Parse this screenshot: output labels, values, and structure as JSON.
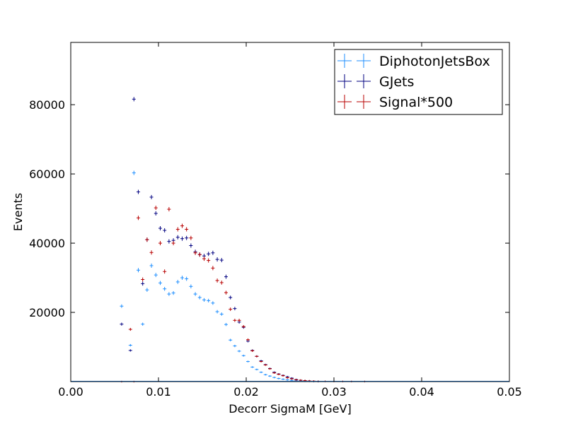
{
  "chart_data": {
    "type": "scatter",
    "xlabel": "Decorr SigmaM [GeV]",
    "ylabel": "Events",
    "xlim": [
      0.0,
      0.05
    ],
    "ylim": [
      0,
      98000
    ],
    "xticks": [
      "0.00",
      "0.01",
      "0.02",
      "0.03",
      "0.04",
      "0.05"
    ],
    "yticks": [
      "20000",
      "40000",
      "60000",
      "80000"
    ],
    "grid": false,
    "legend_position": "top-right",
    "bin_width": 0.0004,
    "series": [
      {
        "name": "DiphotonJetsBox",
        "color": "#1f8fff",
        "x": [
          0.0058,
          0.0068,
          0.0072,
          0.0077,
          0.0082,
          0.0087,
          0.0092,
          0.0097,
          0.0102,
          0.0107,
          0.0112,
          0.0117,
          0.0122,
          0.0127,
          0.0132,
          0.0137,
          0.0142,
          0.0147,
          0.0152,
          0.0157,
          0.0162,
          0.0167,
          0.0172,
          0.0177,
          0.0182,
          0.0187,
          0.0192,
          0.0197,
          0.0202,
          0.0207,
          0.0212,
          0.0217,
          0.0222,
          0.0227,
          0.0232,
          0.0237,
          0.0242,
          0.0247,
          0.0252,
          0.0257,
          0.0262,
          0.0267,
          0.0272,
          0.0277,
          0.0282
        ],
        "y": [
          21800,
          10500,
          60300,
          32200,
          16600,
          26500,
          33500,
          30800,
          28500,
          26800,
          25300,
          25600,
          28800,
          30000,
          29700,
          27500,
          25300,
          24300,
          23600,
          23400,
          22700,
          20200,
          19500,
          16500,
          12000,
          10300,
          8800,
          7500,
          5800,
          4200,
          3500,
          2700,
          2000,
          1600,
          1200,
          900,
          700,
          500,
          350,
          250,
          180,
          120,
          80,
          50,
          30
        ]
      },
      {
        "name": "GJets",
        "color": "#000080",
        "x": [
          0.0058,
          0.0068,
          0.0072,
          0.0077,
          0.0082,
          0.0087,
          0.0092,
          0.0097,
          0.0102,
          0.0107,
          0.0112,
          0.0117,
          0.0122,
          0.0127,
          0.0132,
          0.0137,
          0.0142,
          0.0147,
          0.0152,
          0.0157,
          0.0162,
          0.0167,
          0.0172,
          0.0177,
          0.0182,
          0.0187,
          0.0192,
          0.0197,
          0.0202,
          0.0207,
          0.0212,
          0.0217,
          0.0222,
          0.0227,
          0.0232,
          0.0237,
          0.0242,
          0.0247,
          0.0252,
          0.0257,
          0.0262,
          0.0267,
          0.0272,
          0.0277,
          0.0282
        ],
        "y": [
          16600,
          9000,
          81600,
          54800,
          28300,
          41000,
          53300,
          48600,
          44300,
          43700,
          40500,
          40800,
          41700,
          41300,
          41500,
          39300,
          37500,
          36700,
          36300,
          36900,
          37200,
          35300,
          35100,
          30300,
          24300,
          21100,
          17200,
          15700,
          11700,
          9000,
          7300,
          6000,
          4900,
          3800,
          2700,
          2200,
          1800,
          1400,
          1000,
          600,
          400,
          300,
          200,
          100,
          60
        ]
      },
      {
        "name": "Signal*500",
        "color": "#b80000",
        "x": [
          0.0058,
          0.0068,
          0.0072,
          0.0077,
          0.0082,
          0.0087,
          0.0092,
          0.0097,
          0.0102,
          0.0107,
          0.0112,
          0.0117,
          0.0122,
          0.0127,
          0.0132,
          0.0137,
          0.0142,
          0.0147,
          0.0152,
          0.0157,
          0.0162,
          0.0167,
          0.0172,
          0.0177,
          0.0182,
          0.0187,
          0.0192,
          0.0197,
          0.0202,
          0.0207,
          0.0212,
          0.0217,
          0.0222,
          0.0227,
          0.0232,
          0.0237,
          0.0242,
          0.0247,
          0.0252,
          0.0257,
          0.0262,
          0.0267,
          0.0272,
          0.0277,
          0.0282,
          0.029,
          0.03,
          0.031,
          0.032,
          0.0335
        ],
        "y": [
          0,
          15100,
          0,
          47300,
          29500,
          41000,
          37300,
          50200,
          40000,
          31800,
          49800,
          40000,
          44000,
          45000,
          44000,
          41500,
          37200,
          36700,
          35500,
          35000,
          32800,
          29200,
          28600,
          25700,
          20900,
          17700,
          17700,
          15900,
          12100,
          8900,
          7300,
          5800,
          4800,
          3700,
          2500,
          2100,
          1700,
          1100,
          800,
          500,
          400,
          300,
          200,
          150,
          100,
          80,
          60,
          50,
          40,
          30
        ]
      }
    ]
  }
}
